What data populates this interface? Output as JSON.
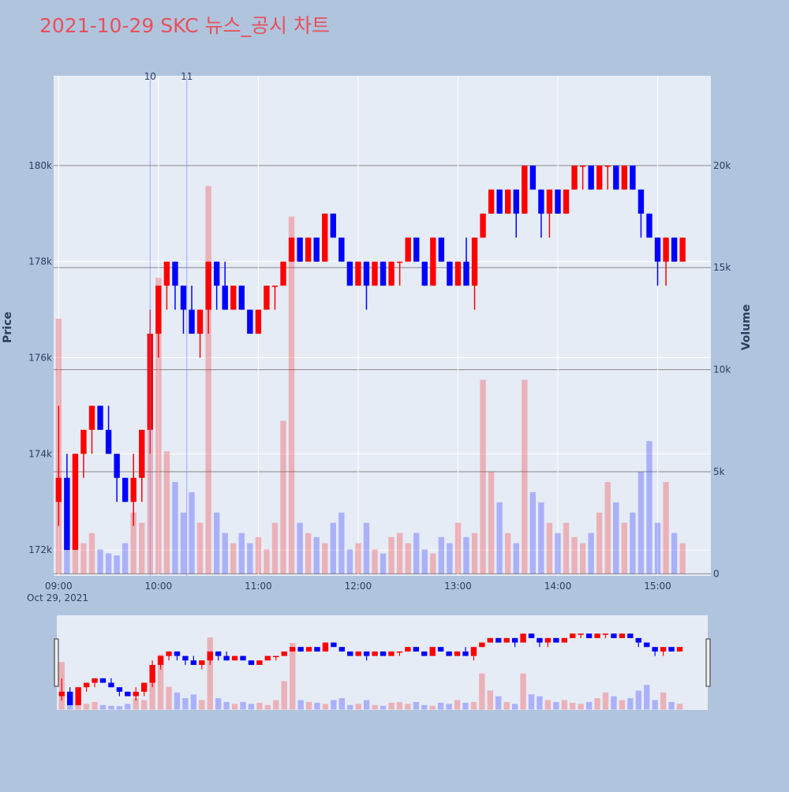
{
  "chart_data": {
    "type": "candlestick",
    "title": "2021-10-29 SKC 뉴스_공시 차트",
    "y_label": "Price",
    "y2_label": "Volume",
    "x_date_label": "Oct 29, 2021",
    "increasing_color": "#ff0000",
    "decreasing_color": "#0000ff",
    "xlim": [
      "08:57",
      "15:32"
    ],
    "xticks": [
      "09:00",
      "10:00",
      "11:00",
      "12:00",
      "13:00",
      "14:00",
      "15:00"
    ],
    "ylim": [
      171460,
      181870
    ],
    "yticks": [
      {
        "value": 172000,
        "label": "172k"
      },
      {
        "value": 174000,
        "label": "174k"
      },
      {
        "value": 176000,
        "label": "176k"
      },
      {
        "value": 178000,
        "label": "178k"
      },
      {
        "value": 180000,
        "label": "180k"
      }
    ],
    "y2lim": [
      -100,
      24400
    ],
    "y2ticks": [
      0,
      {
        "value": 5000,
        "label": "5k"
      },
      {
        "value": 10000,
        "label": "10k"
      },
      {
        "value": 15000,
        "label": "15k"
      },
      {
        "value": 20000,
        "label": "20k"
      }
    ],
    "grid": true,
    "annotations": [
      {
        "x": "09:55",
        "text": "10"
      },
      {
        "x": "10:17",
        "text": "11"
      }
    ],
    "x": [
      "09:00",
      "09:05",
      "09:10",
      "09:15",
      "09:20",
      "09:25",
      "09:30",
      "09:35",
      "09:40",
      "09:45",
      "09:50",
      "09:55",
      "10:00",
      "10:05",
      "10:10",
      "10:15",
      "10:20",
      "10:25",
      "10:30",
      "10:35",
      "10:40",
      "10:45",
      "10:50",
      "10:55",
      "11:00",
      "11:05",
      "11:10",
      "11:15",
      "11:20",
      "11:25",
      "11:30",
      "11:35",
      "11:40",
      "11:45",
      "11:50",
      "11:55",
      "12:00",
      "12:05",
      "12:10",
      "12:15",
      "12:20",
      "12:25",
      "12:30",
      "12:35",
      "12:40",
      "12:45",
      "12:50",
      "12:55",
      "13:00",
      "13:05",
      "13:10",
      "13:15",
      "13:20",
      "13:25",
      "13:30",
      "13:35",
      "13:40",
      "13:45",
      "13:50",
      "13:55",
      "14:00",
      "14:05",
      "14:10",
      "14:15",
      "14:20",
      "14:25",
      "14:30",
      "14:35",
      "14:40",
      "14:45",
      "14:50",
      "14:55",
      "15:00",
      "15:05",
      "15:10",
      "15:15"
    ],
    "open": [
      173000,
      173500,
      172000,
      174000,
      174500,
      175000,
      174500,
      174000,
      173500,
      173000,
      173500,
      174500,
      176500,
      177500,
      178000,
      177500,
      177000,
      176500,
      177000,
      178000,
      177500,
      177000,
      177500,
      177000,
      176500,
      177000,
      177500,
      177500,
      178000,
      178500,
      178000,
      178500,
      178000,
      179000,
      178500,
      178000,
      177500,
      178000,
      177500,
      178000,
      177500,
      178000,
      178000,
      178500,
      178000,
      177500,
      178500,
      178000,
      177500,
      178000,
      177500,
      178500,
      179000,
      179500,
      179000,
      179500,
      179000,
      180000,
      179500,
      179000,
      179500,
      179000,
      179500,
      180000,
      180000,
      179500,
      180000,
      180000,
      179500,
      180000,
      179500,
      179000,
      178500,
      178000,
      178500,
      178000
    ],
    "high": [
      175000,
      174000,
      174000,
      174500,
      175000,
      175000,
      175000,
      174000,
      173500,
      174000,
      174500,
      177000,
      177500,
      178000,
      178000,
      177500,
      177500,
      177000,
      178000,
      178000,
      178000,
      177500,
      177500,
      177000,
      177000,
      177500,
      177500,
      178000,
      178500,
      178500,
      178500,
      178500,
      179000,
      179000,
      178500,
      178000,
      178000,
      178000,
      178000,
      178000,
      178000,
      178000,
      178500,
      178500,
      178000,
      178500,
      178500,
      178000,
      178000,
      178500,
      178500,
      179000,
      179500,
      179500,
      179500,
      179500,
      180000,
      180000,
      179500,
      179500,
      179500,
      179500,
      180000,
      180000,
      180000,
      180000,
      180000,
      180000,
      180000,
      180000,
      179500,
      179000,
      178500,
      178500,
      178500,
      178500
    ],
    "low": [
      172500,
      172000,
      172000,
      173500,
      174000,
      174500,
      174000,
      173000,
      173000,
      172500,
      173000,
      174000,
      176000,
      177000,
      177000,
      176500,
      176500,
      176000,
      176500,
      177000,
      177000,
      177000,
      177000,
      176500,
      176500,
      177000,
      177000,
      177500,
      178000,
      178000,
      178000,
      178000,
      178000,
      178500,
      178000,
      177500,
      177500,
      177000,
      177500,
      177500,
      177500,
      177500,
      178000,
      178000,
      177500,
      177500,
      178000,
      177500,
      177500,
      177500,
      177000,
      178500,
      179000,
      179000,
      179000,
      178500,
      179000,
      179500,
      178500,
      178500,
      179000,
      179000,
      179500,
      179500,
      179500,
      179500,
      179500,
      179500,
      179500,
      179500,
      178500,
      178500,
      177500,
      177500,
      178000,
      178000
    ],
    "close": [
      173500,
      172000,
      174000,
      174500,
      175000,
      174500,
      174000,
      173500,
      173000,
      173500,
      174500,
      176500,
      177500,
      178000,
      177500,
      177000,
      176500,
      177000,
      178000,
      177500,
      177000,
      177500,
      177000,
      176500,
      177000,
      177500,
      177500,
      178000,
      178500,
      178000,
      178500,
      178000,
      179000,
      178500,
      178000,
      177500,
      178000,
      177500,
      178000,
      177500,
      178000,
      178000,
      178500,
      178000,
      177500,
      178500,
      178000,
      177500,
      178000,
      177500,
      178500,
      179000,
      179500,
      179000,
      179500,
      179000,
      180000,
      179500,
      179000,
      179500,
      179000,
      179500,
      180000,
      180000,
      179500,
      180000,
      180000,
      179500,
      180000,
      179500,
      179000,
      178500,
      178000,
      178500,
      178000,
      178500
    ],
    "volume": [
      12500,
      2500,
      1800,
      1500,
      2000,
      1200,
      1000,
      900,
      1500,
      3000,
      2500,
      8000,
      14500,
      6000,
      4500,
      3000,
      4000,
      2500,
      19000,
      3000,
      2000,
      1500,
      2000,
      1500,
      1800,
      1200,
      2500,
      7500,
      17500,
      2500,
      2000,
      1800,
      1500,
      2500,
      3000,
      1200,
      1500,
      2500,
      1200,
      1000,
      1800,
      2000,
      1500,
      2000,
      1200,
      1000,
      1800,
      1500,
      2500,
      1800,
      2000,
      9500,
      5000,
      3500,
      2000,
      1500,
      9500,
      4000,
      3500,
      2500,
      2000,
      2500,
      1800,
      1500,
      2000,
      3000,
      4500,
      3500,
      2500,
      3000,
      5000,
      6500,
      2500,
      4500,
      2000,
      1500
    ]
  }
}
